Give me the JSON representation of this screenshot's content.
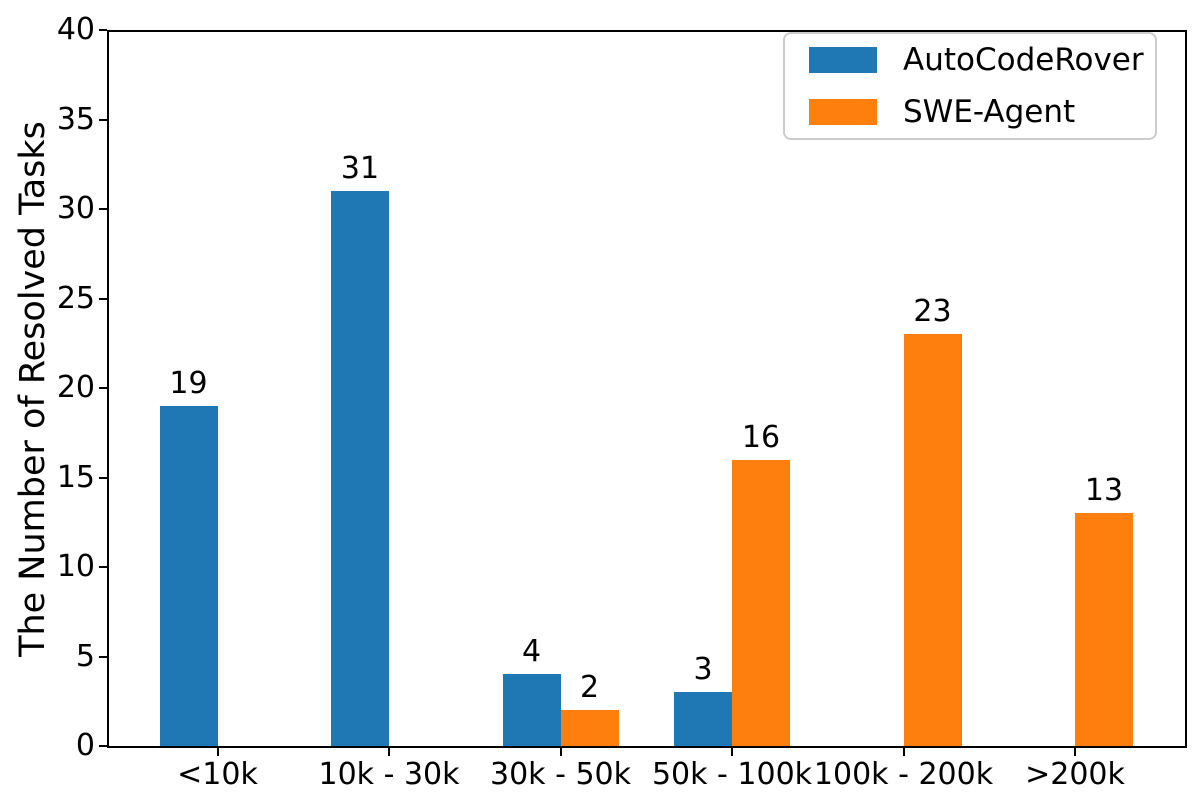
{
  "chart_data": {
    "type": "bar",
    "title": "",
    "xlabel": "",
    "ylabel": "The Number of Resolved Tasks",
    "categories": [
      "<10k",
      "10k - 30k",
      "30k - 50k",
      "50k - 100k",
      "100k - 200k",
      ">200k"
    ],
    "series": [
      {
        "name": "AutoCodeRover",
        "color": "#1f77b4",
        "values": [
          19,
          31,
          4,
          3,
          null,
          null
        ]
      },
      {
        "name": "SWE-Agent",
        "color": "#ff7f0e",
        "values": [
          null,
          null,
          2,
          16,
          23,
          13
        ]
      }
    ],
    "ylim": [
      0,
      40
    ],
    "yticks": [
      0,
      5,
      10,
      15,
      20,
      25,
      30,
      35,
      40
    ],
    "grid": false,
    "value_labels": true,
    "legend_position": "upper right"
  },
  "colors": {
    "axis": "#000000",
    "legend_border": "#cccccc",
    "background": "#ffffff"
  }
}
